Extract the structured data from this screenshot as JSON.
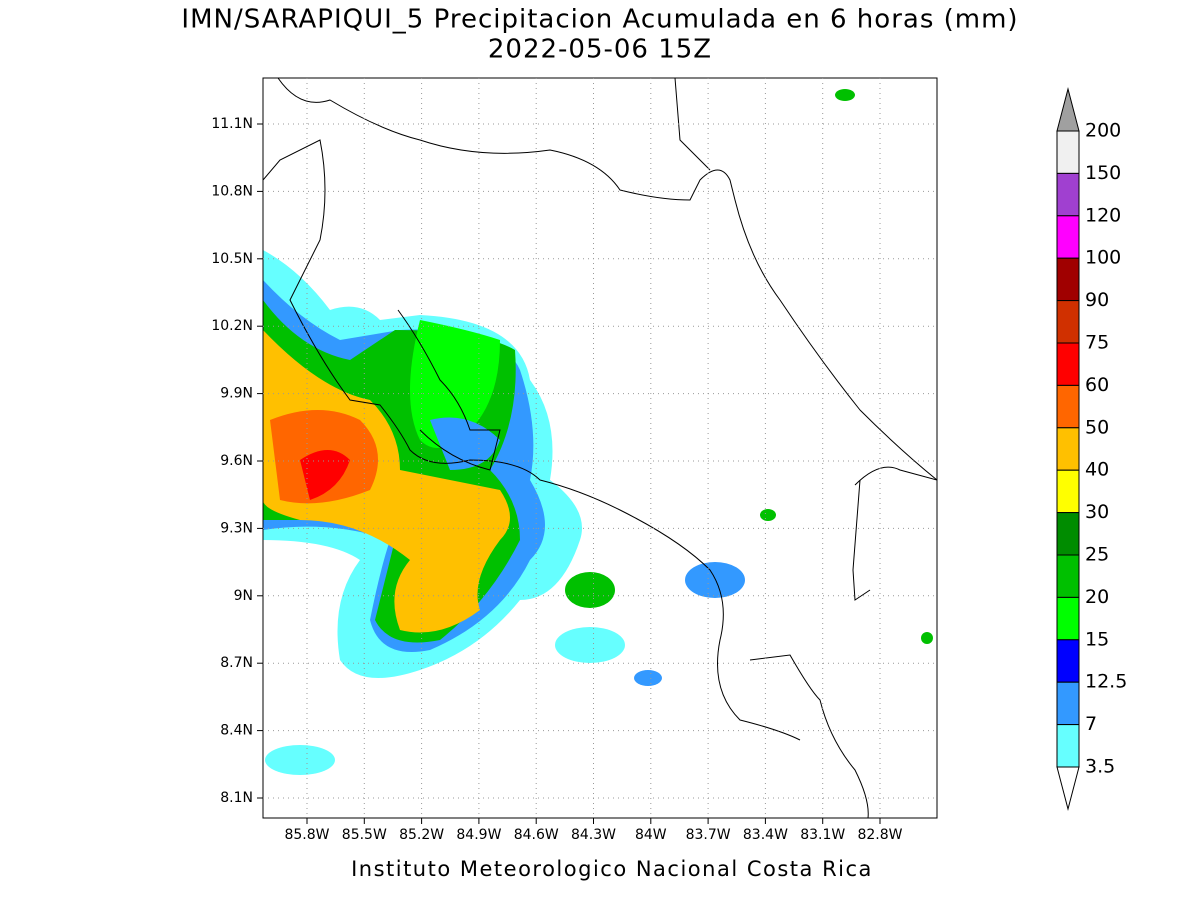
{
  "header": {
    "title": "IMN/SARAPIQUI_5 Precipitacion Acumulada en 6 horas (mm)",
    "subtitle": "2022-05-06 15Z"
  },
  "map": {
    "lat_labels": [
      "11.1N",
      "10.8N",
      "10.5N",
      "10.2N",
      "9.9N",
      "9.6N",
      "9.3N",
      "9N",
      "8.7N",
      "8.4N",
      "8.1N"
    ],
    "lon_labels": [
      "85.8W",
      "85.5W",
      "85.2W",
      "84.9W",
      "84.6W",
      "84.3W",
      "84W",
      "83.7W",
      "83.4W",
      "83.1W",
      "82.8W"
    ]
  },
  "legend": {
    "levels": [
      200,
      150,
      120,
      100,
      90,
      75,
      60,
      50,
      40,
      30,
      25,
      20,
      15,
      12.5,
      7,
      3.5
    ],
    "colors": [
      "#f0f0f0",
      "#a040d0",
      "#ff00ff",
      "#a00000",
      "#d03000",
      "#ff0000",
      "#ff6600",
      "#ffc000",
      "#ffff00",
      "#008c00",
      "#00c000",
      "#00ff00",
      "#0000ff",
      "#3399ff",
      "#66ffff"
    ],
    "over_color": "#a0a0a0",
    "under_color": "#ffffff"
  },
  "footer": "Instituto Meteorologico Nacional Costa Rica"
}
